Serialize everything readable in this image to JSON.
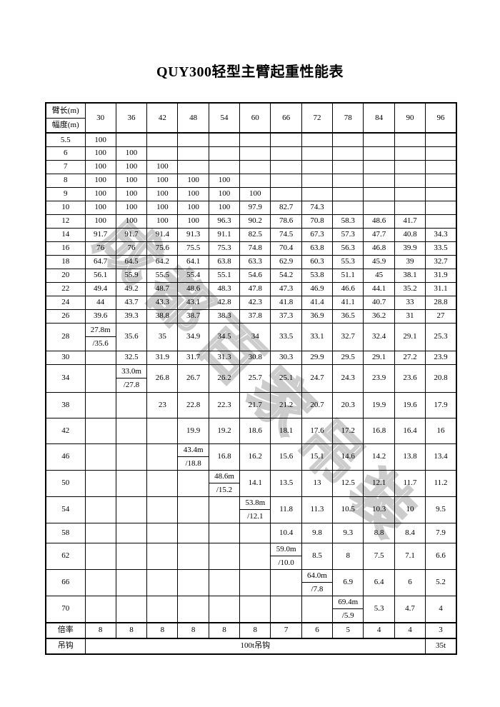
{
  "title": "QUY300轻型主臂起重性能表",
  "watermark": "成都百家吊装",
  "table": {
    "corner_top": "臂长(m)",
    "corner_bottom": "幅度(m)",
    "boom_lengths": [
      "30",
      "36",
      "42",
      "48",
      "54",
      "60",
      "66",
      "72",
      "78",
      "84",
      "90",
      "96"
    ],
    "rows": [
      {
        "radius": "5.5",
        "h": "s",
        "cells": [
          "100",
          "",
          "",
          "",
          "",
          "",
          "",
          "",
          "",
          "",
          "",
          ""
        ]
      },
      {
        "radius": "6",
        "h": "s",
        "cells": [
          "100",
          "100",
          "",
          "",
          "",
          "",
          "",
          "",
          "",
          "",
          "",
          ""
        ]
      },
      {
        "radius": "7",
        "h": "s",
        "cells": [
          "100",
          "100",
          "100",
          "",
          "",
          "",
          "",
          "",
          "",
          "",
          "",
          ""
        ]
      },
      {
        "radius": "8",
        "h": "s",
        "cells": [
          "100",
          "100",
          "100",
          "100",
          "100",
          "",
          "",
          "",
          "",
          "",
          "",
          ""
        ]
      },
      {
        "radius": "9",
        "h": "s",
        "cells": [
          "100",
          "100",
          "100",
          "100",
          "100",
          "100",
          "",
          "",
          "",
          "",
          "",
          ""
        ]
      },
      {
        "radius": "10",
        "h": "s",
        "cells": [
          "100",
          "100",
          "100",
          "100",
          "100",
          "97.9",
          "82.7",
          "74.3",
          "",
          "",
          "",
          ""
        ]
      },
      {
        "radius": "12",
        "h": "s",
        "cells": [
          "100",
          "100",
          "100",
          "100",
          "96.3",
          "90.2",
          "78.6",
          "70.8",
          "58.3",
          "48.6",
          "41.7",
          ""
        ]
      },
      {
        "radius": "14",
        "h": "s",
        "cells": [
          "91.7",
          "91.7",
          "91.4",
          "91.3",
          "91.1",
          "82.5",
          "74.5",
          "67.3",
          "57.3",
          "47.7",
          "40.8",
          "34.3"
        ]
      },
      {
        "radius": "16",
        "h": "s",
        "cells": [
          "76",
          "76",
          "75.6",
          "75.5",
          "75.3",
          "74.8",
          "70.4",
          "63.8",
          "56.3",
          "46.8",
          "39.9",
          "33.5"
        ]
      },
      {
        "radius": "18",
        "h": "s",
        "cells": [
          "64.7",
          "64.5",
          "64.2",
          "64.1",
          "63.8",
          "63.3",
          "62.9",
          "60.3",
          "55.3",
          "45.9",
          "39",
          "32.7"
        ]
      },
      {
        "radius": "20",
        "h": "s",
        "cells": [
          "56.1",
          "55.9",
          "55.5",
          "55.4",
          "55.1",
          "54.6",
          "54.2",
          "53.8",
          "51.1",
          "45",
          "38.1",
          "31.9"
        ]
      },
      {
        "radius": "22",
        "h": "s",
        "cells": [
          "49.4",
          "49.2",
          "48.7",
          "48.6",
          "48.3",
          "47.8",
          "47.3",
          "46.9",
          "46.6",
          "44.1",
          "35.2",
          "31.1"
        ]
      },
      {
        "radius": "24",
        "h": "s",
        "cells": [
          "44",
          "43.7",
          "43.3",
          "43.1",
          "42.8",
          "42.3",
          "41.8",
          "41.4",
          "41.1",
          "40.7",
          "33",
          "28.8"
        ]
      },
      {
        "radius": "26",
        "h": "s",
        "cells": [
          "39.6",
          "39.3",
          "38.8",
          "38.7",
          "38.3",
          "37.8",
          "37.3",
          "36.9",
          "36.5",
          "36.2",
          "31",
          "27"
        ]
      },
      {
        "radius": "28",
        "h": "xl",
        "cells": [
          {
            "top": "27.8m",
            "bottom": "/35.6"
          },
          "35.6",
          "35",
          "34.9",
          "34.5",
          "34",
          "33.5",
          "33.1",
          "32.7",
          "32.4",
          "29.1",
          "25.3"
        ]
      },
      {
        "radius": "30",
        "h": "s",
        "cells": [
          "",
          "32.5",
          "31.9",
          "31.7",
          "31.3",
          "30.8",
          "30.3",
          "29.9",
          "29.5",
          "29.1",
          "27.2",
          "23.9"
        ]
      },
      {
        "radius": "34",
        "h": "xl",
        "cells": [
          "",
          {
            "top": "33.0m",
            "bottom": "/27.8"
          },
          "26.8",
          "26.7",
          "26.2",
          "25.7",
          "25.1",
          "24.7",
          "24.3",
          "23.9",
          "23.6",
          "20.8"
        ]
      },
      {
        "radius": "38",
        "h": "l",
        "cells": [
          "",
          "",
          "23",
          "22.8",
          "22.3",
          "21.7",
          "21.2",
          "20.7",
          "20.3",
          "19.9",
          "19.6",
          "17.9"
        ]
      },
      {
        "radius": "42",
        "h": "l",
        "cells": [
          "",
          "",
          "",
          "19.9",
          "19.2",
          "18.6",
          "18.1",
          "17.6",
          "17.2",
          "16.8",
          "16.4",
          "16"
        ]
      },
      {
        "radius": "46",
        "h": "l",
        "cells": [
          "",
          "",
          "",
          {
            "top": "43.4m",
            "bottom": "/18.8"
          },
          "16.8",
          "16.2",
          "15.6",
          "15.1",
          "14.6",
          "14.2",
          "13.8",
          "13.4"
        ]
      },
      {
        "radius": "50",
        "h": "l",
        "cells": [
          "",
          "",
          "",
          "",
          {
            "top": "48.6m",
            "bottom": "/15.2"
          },
          "14.1",
          "13.5",
          "13",
          "12.5",
          "12.1",
          "11.7",
          "11.2"
        ]
      },
      {
        "radius": "54",
        "h": "l",
        "cells": [
          "",
          "",
          "",
          "",
          "",
          {
            "top": "53.8m",
            "bottom": "/12.1"
          },
          "11.8",
          "11.3",
          "10.5",
          "10.3",
          "10",
          "9.5"
        ]
      },
      {
        "radius": "58",
        "h": "m",
        "cells": [
          "",
          "",
          "",
          "",
          "",
          "",
          "10.4",
          "9.8",
          "9.3",
          "8.8",
          "8.4",
          "7.9"
        ]
      },
      {
        "radius": "62",
        "h": "l",
        "cells": [
          "",
          "",
          "",
          "",
          "",
          "",
          {
            "top": "59.0m",
            "bottom": "/10.0"
          },
          "8.5",
          "8",
          "7.5",
          "7.1",
          "6.6"
        ]
      },
      {
        "radius": "66",
        "h": "l",
        "cells": [
          "",
          "",
          "",
          "",
          "",
          "",
          "",
          {
            "top": "64.0m",
            "bottom": "/7.8"
          },
          "6.9",
          "6.4",
          "6",
          "5.2"
        ]
      },
      {
        "radius": "70",
        "h": "l",
        "cells": [
          "",
          "",
          "",
          "",
          "",
          "",
          "",
          "",
          {
            "top": "69.4m",
            "bottom": "/5.9"
          },
          "5.3",
          "4.7",
          "4"
        ]
      }
    ],
    "multiplier": {
      "label": "倍率",
      "values": [
        "8",
        "8",
        "8",
        "8",
        "8",
        "8",
        "7",
        "6",
        "5",
        "4",
        "4",
        "3"
      ]
    },
    "hook": {
      "label": "吊钩",
      "merged_value": "100t吊钩",
      "merged_span": 11,
      "last_value": "35t"
    }
  }
}
